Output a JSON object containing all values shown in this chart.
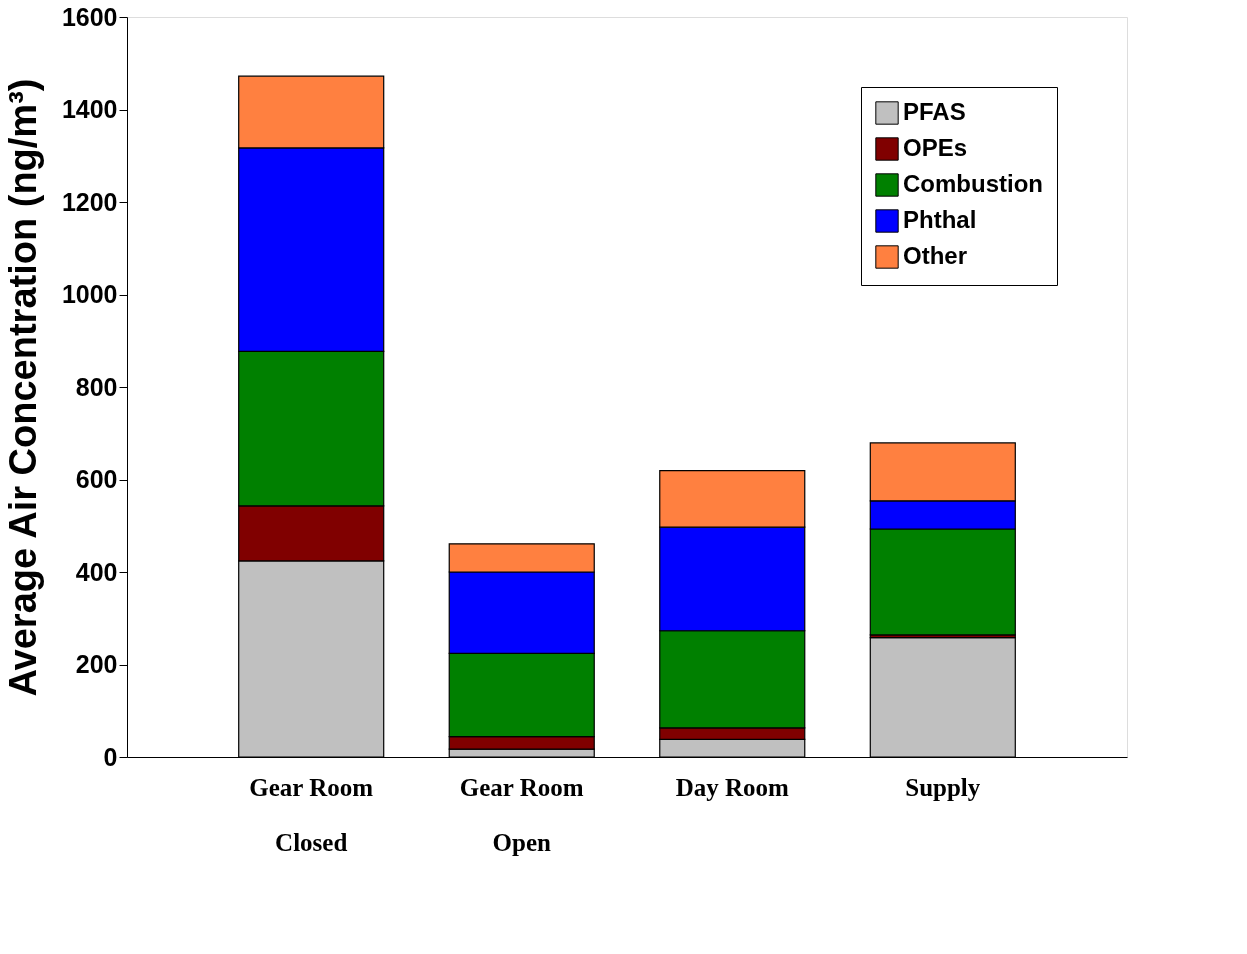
{
  "chart_data": {
    "type": "bar",
    "stacked": true,
    "ylabel": "Average Air Concentration (ng/m³)",
    "categories": [
      "Gear Room\nClosed",
      "Gear Room\nOpen",
      "Day Room",
      "Supply"
    ],
    "series": [
      {
        "name": "PFAS",
        "color": "#c0c0c0",
        "values": [
          424,
          17,
          38,
          258
        ]
      },
      {
        "name": "OPEs",
        "color": "#800000",
        "values": [
          119,
          27,
          25,
          6
        ]
      },
      {
        "name": "Combustion",
        "color": "#008000",
        "values": [
          334,
          180,
          210,
          229
        ]
      },
      {
        "name": "Phthal",
        "color": "#0000ff",
        "values": [
          440,
          176,
          224,
          61
        ]
      },
      {
        "name": "Other",
        "color": "#ff8040",
        "values": [
          155,
          61,
          122,
          125
        ]
      }
    ],
    "ylim": [
      0,
      1600
    ],
    "yticks": [
      0,
      200,
      400,
      600,
      800,
      1000,
      1200,
      1400,
      1600
    ],
    "grid": false,
    "legend": "top right"
  }
}
